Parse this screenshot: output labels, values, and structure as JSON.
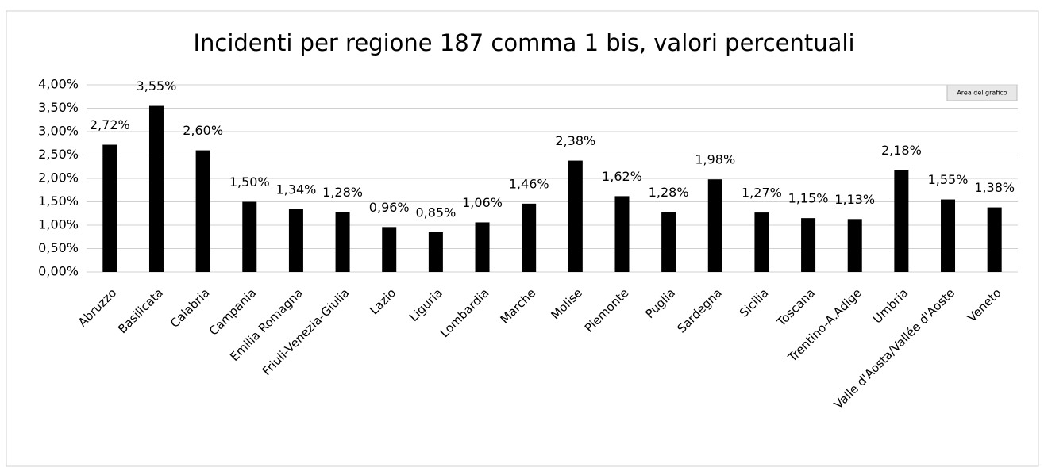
{
  "chart_data": {
    "type": "bar",
    "title": "Incidenti per regione 187 comma 1 bis, valori percentuali",
    "categories": [
      "Abruzzo",
      "Basilicata",
      "Calabria",
      "Campania",
      "Emilia Romagna",
      "Friuli-Venezia-Giulia",
      "Lazio",
      "Liguria",
      "Lombardia",
      "Marche",
      "Molise",
      "Piemonte",
      "Puglia",
      "Sardegna",
      "Sicilia",
      "Toscana",
      "Trentino-A.Adige",
      "Umbria",
      "Valle d'Aosta/Vallée d'Aoste",
      "Veneto"
    ],
    "values": [
      2.72,
      3.55,
      2.6,
      1.5,
      1.34,
      1.28,
      0.96,
      0.85,
      1.06,
      1.46,
      2.38,
      1.62,
      1.28,
      1.98,
      1.27,
      1.15,
      1.13,
      2.18,
      1.55,
      1.38
    ],
    "value_labels": [
      "2,72%",
      "3,55%",
      "2,60%",
      "1,50%",
      "1,34%",
      "1,28%",
      "0,96%",
      "0,85%",
      "1,06%",
      "1,46%",
      "2,38%",
      "1,62%",
      "1,28%",
      "1,98%",
      "1,27%",
      "1,15%",
      "1,13%",
      "2,18%",
      "1,55%",
      "1,38%"
    ],
    "color": "#000000",
    "ylim": [
      0,
      4
    ],
    "yticks": [
      {
        "value": 0,
        "label": "0,00%"
      },
      {
        "value": 0.5,
        "label": "0,50%"
      },
      {
        "value": 1,
        "label": "1,00%"
      },
      {
        "value": 1.5,
        "label": "1,50%"
      },
      {
        "value": 2,
        "label": "2,00%"
      },
      {
        "value": 2.5,
        "label": "2,50%"
      },
      {
        "value": 3,
        "label": "3,00%"
      },
      {
        "value": 3.5,
        "label": "3,50%"
      },
      {
        "value": 4,
        "label": "4,00%"
      }
    ],
    "grid": true,
    "tooltip": "Area del grafico"
  }
}
